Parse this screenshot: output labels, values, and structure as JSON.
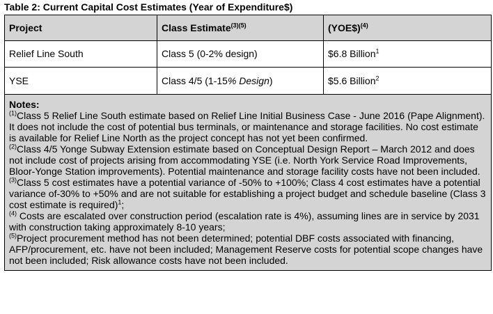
{
  "caption": "Table 2: Current Capital Cost Estimates (Year of Expenditure$)",
  "header": {
    "project": "Project",
    "class_estimate": "Class Estimate",
    "class_estimate_sup": "(3)(5)",
    "yoe": "(YOE$)",
    "yoe_sup": "(4)"
  },
  "rows": [
    {
      "project": "Relief Line South",
      "class_estimate": "Class 5 (0-2% design)",
      "class_estimate_italic": "",
      "class_estimate_tail": "",
      "yoe": "$6.8 Billion",
      "yoe_sup": "1"
    },
    {
      "project": "YSE",
      "class_estimate": "Class 4/5 (1-15",
      "class_estimate_italic": "% Design",
      "class_estimate_tail": ")",
      "yoe": "$5.6 Billion",
      "yoe_sup": "2"
    }
  ],
  "notes": {
    "title": "Notes:",
    "items": [
      {
        "marker": "(1)",
        "text": "Class 5 Relief Line South estimate based on Relief Line Initial Business Case - June 2016 (Pape Alignment). It does not include the cost of potential bus terminals, or maintenance and storage facilities. No cost estimate is available for Relief Line North as the project concept has not yet been confirmed.",
        "tail_sup": ""
      },
      {
        "marker": "(2)",
        "text": "Class 4/5 Yonge Subway Extension estimate based on Conceptual Design Report – March 2012 and does not include cost of projects arising from accommodating YSE (i.e. North York Service Road Improvements, Bloor-Yonge Station improvements). Potential maintenance and storage facility costs have not been included.",
        "tail_sup": ""
      },
      {
        "marker": "(3)",
        "text": "Class 5 cost estimates have a potential variance of -50% to +100%; Class 4 cost estimates have a potential variance of-30% to +50% and are not suitable for establishing a project budget and schedule baseline (Class 3 cost estimate is required)",
        "tail_sup": "1",
        "tail_text": ";"
      },
      {
        "marker": "(4)",
        "text": " Costs are escalated over construction period (escalation rate is 4%), assuming lines are in service by 2031 with construction taking approximately 8-10 years;",
        "tail_sup": ""
      },
      {
        "marker": "(5)",
        "text": "Project procurement method has not been determined; potential DBF costs associated with financing, AFP/procurement, etc. have not been included; Management Reserve costs for potential scope changes have not been included; Risk allowance costs have not been included.",
        "tail_sup": ""
      }
    ]
  }
}
